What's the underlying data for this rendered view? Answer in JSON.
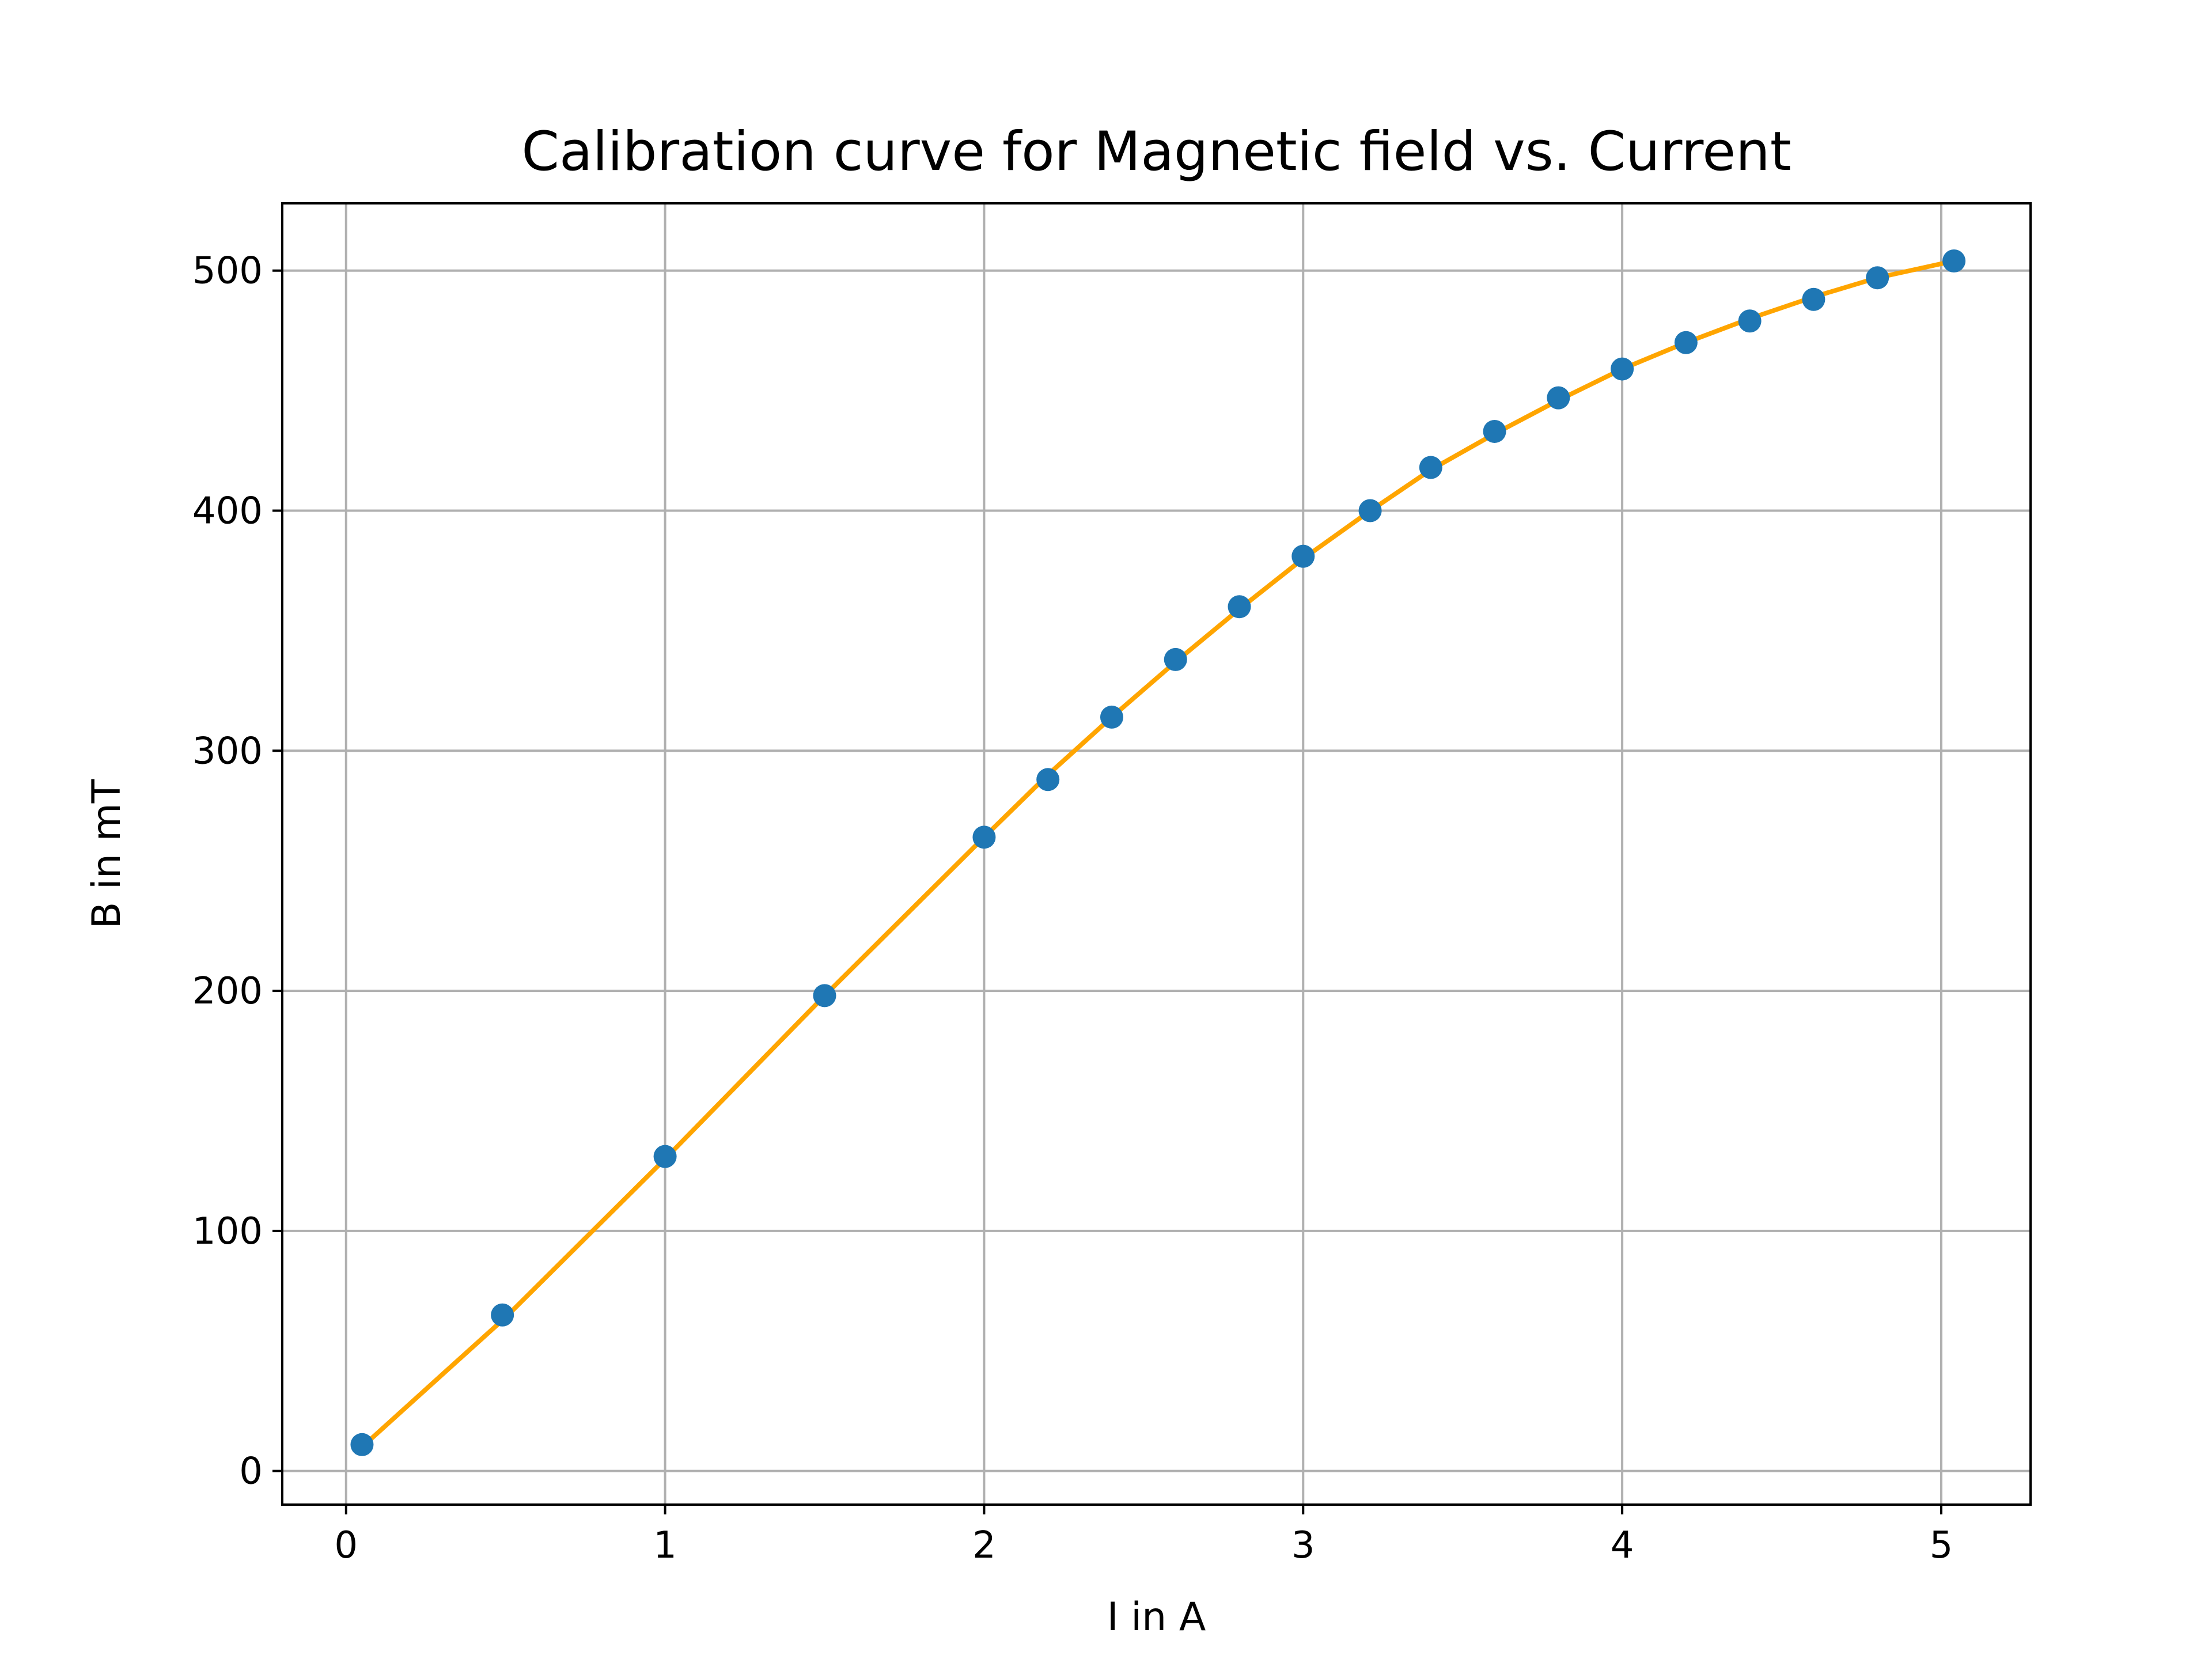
{
  "chart_data": {
    "type": "scatter",
    "title": "Calibration curve for Magnetic field vs. Current",
    "xlabel": "I in A",
    "ylabel": "B in mT",
    "xlim": [
      -0.2,
      5.28
    ],
    "ylim": [
      -14,
      528
    ],
    "xticks": [
      0,
      1,
      2,
      3,
      4,
      5
    ],
    "yticks": [
      0,
      100,
      200,
      300,
      400,
      500
    ],
    "grid": true,
    "legend": "none",
    "series": [
      {
        "kind": "scatter",
        "color": "#1f77b4",
        "points": [
          [
            0.05,
            11
          ],
          [
            0.49,
            65
          ],
          [
            1.0,
            131
          ],
          [
            1.5,
            198
          ],
          [
            2.0,
            264
          ],
          [
            2.2,
            288
          ],
          [
            2.4,
            314
          ],
          [
            2.6,
            338
          ],
          [
            2.8,
            360
          ],
          [
            3.0,
            381
          ],
          [
            3.21,
            400
          ],
          [
            3.4,
            418
          ],
          [
            3.6,
            433
          ],
          [
            3.8,
            447
          ],
          [
            4.0,
            459
          ],
          [
            4.2,
            470
          ],
          [
            4.4,
            479
          ],
          [
            4.6,
            488
          ],
          [
            4.8,
            497
          ],
          [
            5.04,
            504
          ]
        ]
      },
      {
        "kind": "line",
        "color": "#ffa500",
        "points": [
          [
            0.05,
            10
          ],
          [
            0.3,
            40
          ],
          [
            0.5,
            64
          ],
          [
            0.75,
            97
          ],
          [
            1.0,
            130
          ],
          [
            1.25,
            164
          ],
          [
            1.5,
            198
          ],
          [
            1.75,
            231
          ],
          [
            2.0,
            264
          ],
          [
            2.2,
            290
          ],
          [
            2.4,
            314
          ],
          [
            2.6,
            337
          ],
          [
            2.8,
            359
          ],
          [
            3.0,
            380
          ],
          [
            3.2,
            399
          ],
          [
            3.4,
            417
          ],
          [
            3.6,
            432
          ],
          [
            3.8,
            446
          ],
          [
            4.0,
            459
          ],
          [
            4.2,
            470
          ],
          [
            4.4,
            480
          ],
          [
            4.6,
            489
          ],
          [
            4.8,
            497
          ],
          [
            5.04,
            504
          ]
        ]
      }
    ]
  }
}
